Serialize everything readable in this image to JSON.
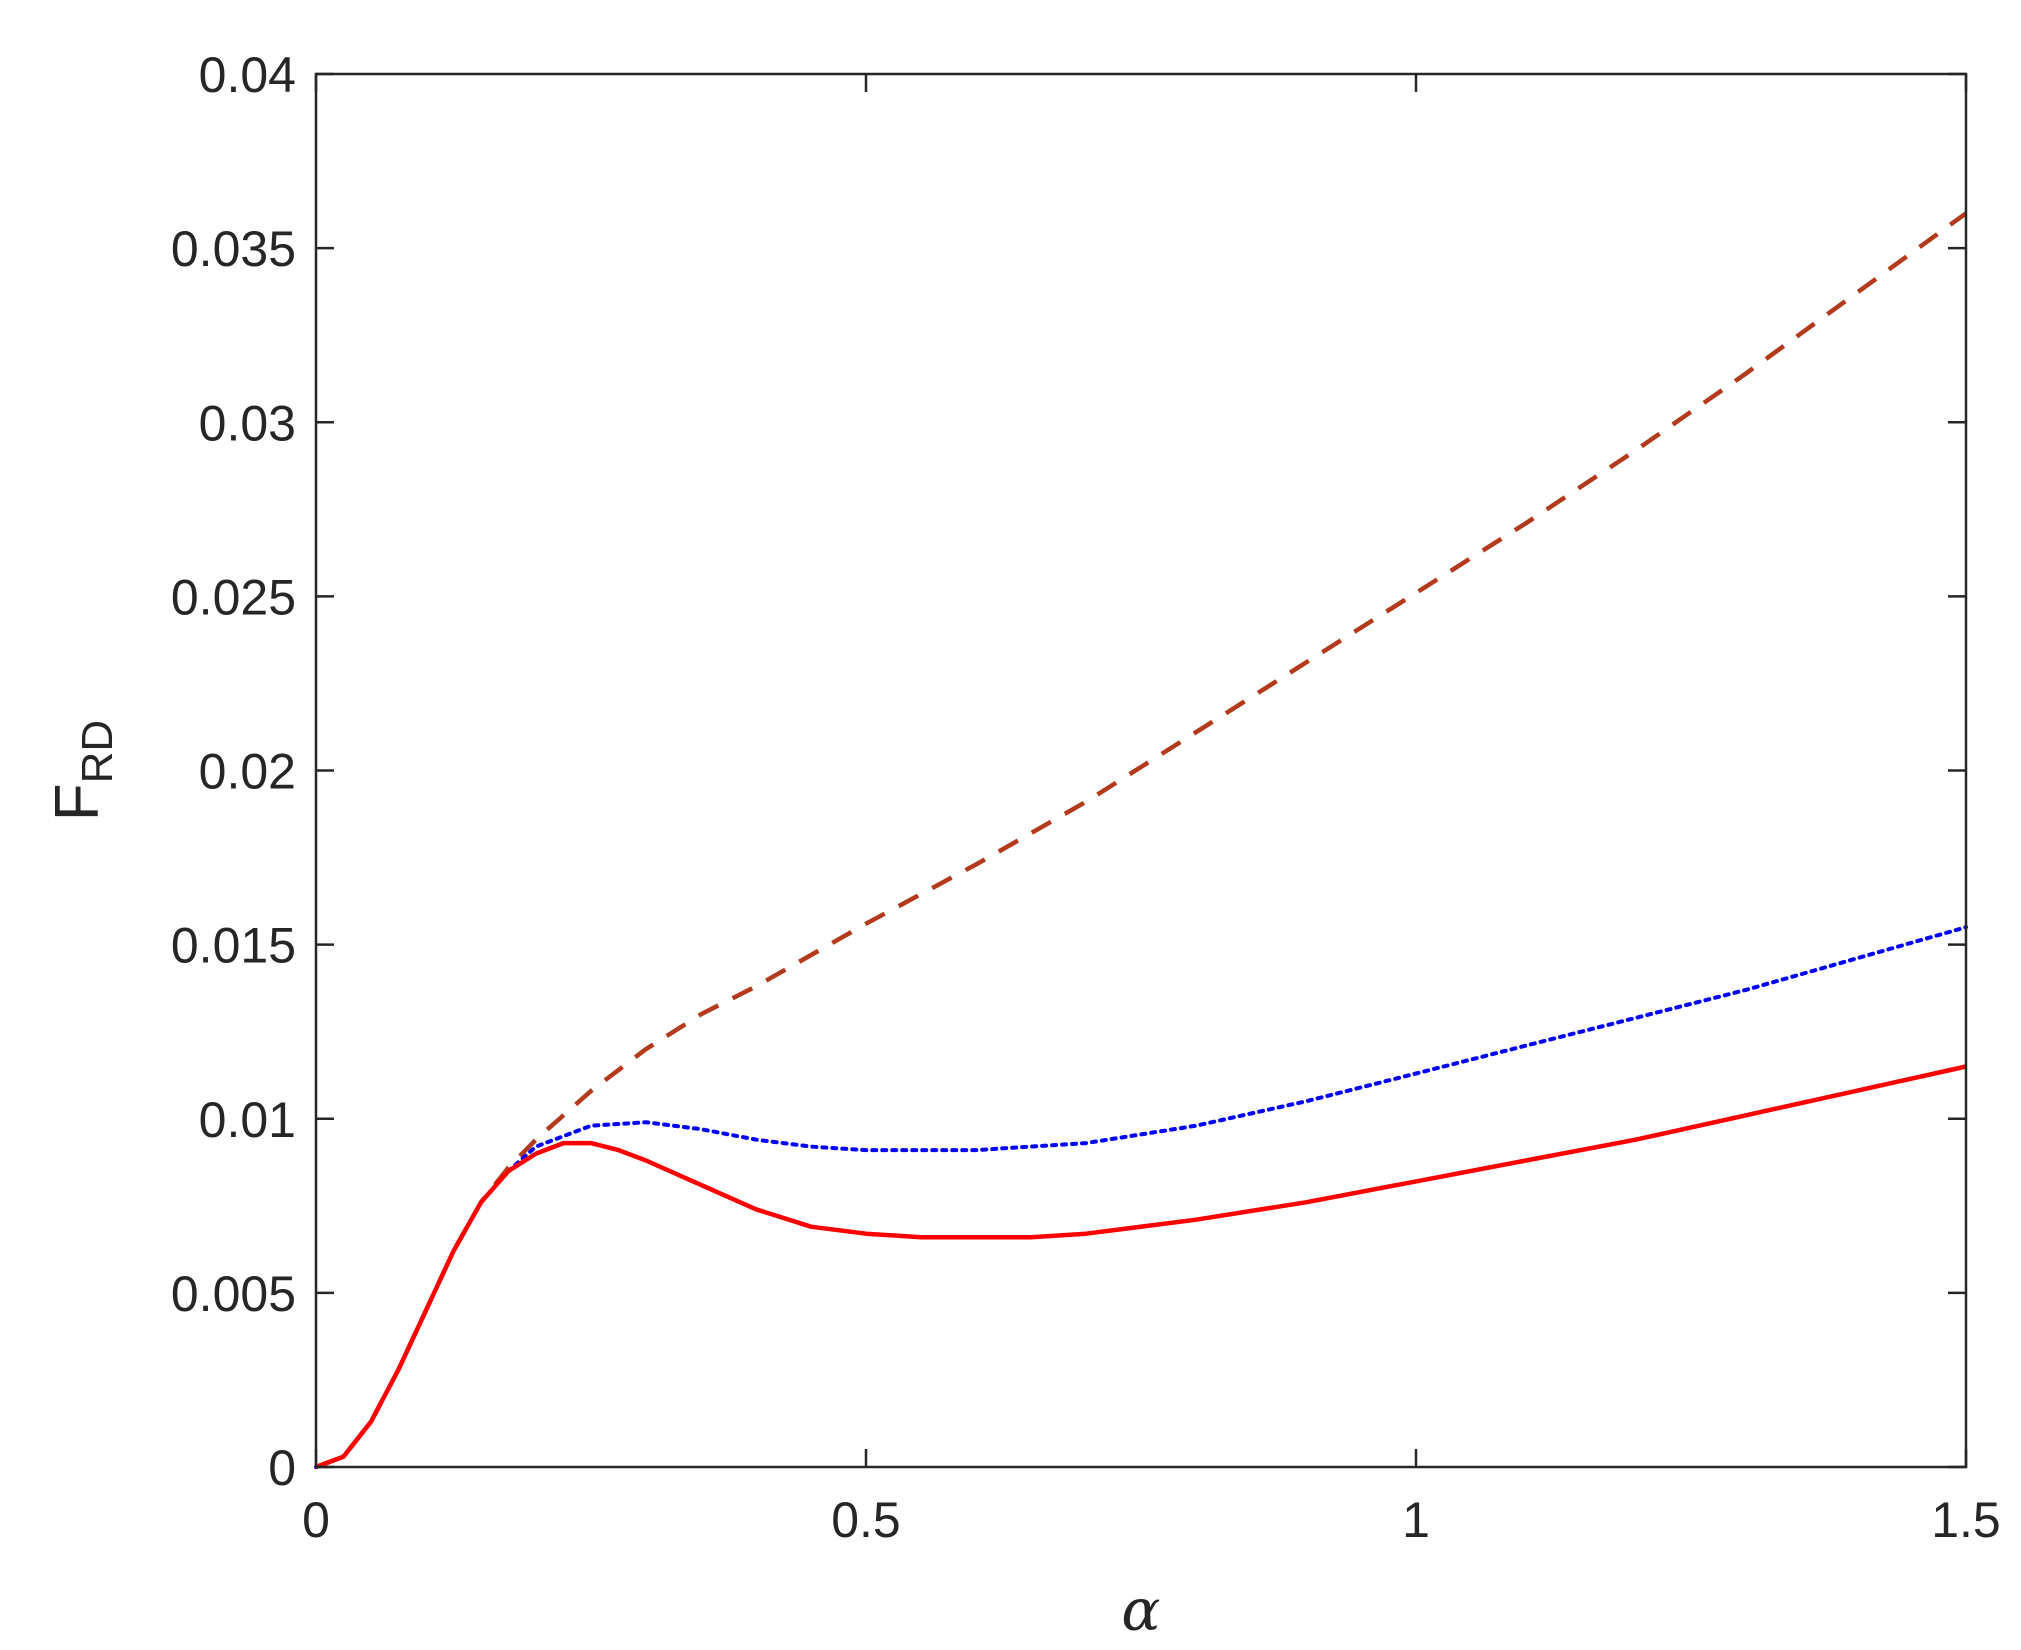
{
  "chart_data": {
    "type": "line",
    "title": "",
    "xlabel": "α",
    "ylabel_main": "F",
    "ylabel_sub": "RD",
    "xlim": [
      0,
      1.5
    ],
    "ylim": [
      0,
      0.04
    ],
    "xticks": [
      0,
      0.5,
      1,
      1.5
    ],
    "xtick_labels": [
      "0",
      "0.5",
      "1",
      "1.5"
    ],
    "yticks": [
      0,
      0.005,
      0.01,
      0.015,
      0.02,
      0.025,
      0.03,
      0.035,
      0.04
    ],
    "ytick_labels": [
      "0",
      "0.005",
      "0.01",
      "0.015",
      "0.02",
      "0.025",
      "0.03",
      "0.035",
      "0.04"
    ],
    "grid": false,
    "series": [
      {
        "style": "dashed",
        "color": "#b33a1a",
        "x": [
          0,
          0.025,
          0.05,
          0.075,
          0.1,
          0.125,
          0.15,
          0.175,
          0.2,
          0.25,
          0.3,
          0.35,
          0.4,
          0.5,
          0.6,
          0.7,
          0.8,
          0.9,
          1.0,
          1.1,
          1.2,
          1.3,
          1.4,
          1.5
        ],
        "y": [
          0,
          0.0003,
          0.0013,
          0.0028,
          0.0045,
          0.0062,
          0.0076,
          0.0086,
          0.0094,
          0.0108,
          0.012,
          0.013,
          0.0138,
          0.0156,
          0.0173,
          0.0191,
          0.0211,
          0.0231,
          0.0251,
          0.0271,
          0.0292,
          0.0314,
          0.0337,
          0.036
        ]
      },
      {
        "style": "dotted",
        "color": "#0000ff",
        "x": [
          0,
          0.025,
          0.05,
          0.075,
          0.1,
          0.125,
          0.15,
          0.175,
          0.2,
          0.25,
          0.3,
          0.35,
          0.4,
          0.45,
          0.5,
          0.55,
          0.6,
          0.65,
          0.7,
          0.8,
          0.9,
          1.0,
          1.1,
          1.2,
          1.3,
          1.4,
          1.5
        ],
        "y": [
          0,
          0.0003,
          0.0013,
          0.0028,
          0.0045,
          0.0062,
          0.0076,
          0.0085,
          0.0092,
          0.0098,
          0.0099,
          0.0097,
          0.0094,
          0.0092,
          0.0091,
          0.0091,
          0.0091,
          0.0092,
          0.0093,
          0.0098,
          0.0105,
          0.0113,
          0.0121,
          0.0129,
          0.0137,
          0.0146,
          0.0155
        ]
      },
      {
        "style": "solid",
        "color": "#ff0000",
        "x": [
          0,
          0.025,
          0.05,
          0.075,
          0.1,
          0.125,
          0.15,
          0.175,
          0.2,
          0.225,
          0.25,
          0.275,
          0.3,
          0.35,
          0.4,
          0.45,
          0.5,
          0.55,
          0.6,
          0.65,
          0.7,
          0.8,
          0.9,
          1.0,
          1.1,
          1.2,
          1.3,
          1.4,
          1.5
        ],
        "y": [
          0,
          0.0003,
          0.0013,
          0.0028,
          0.0045,
          0.0062,
          0.0076,
          0.0085,
          0.009,
          0.0093,
          0.0093,
          0.0091,
          0.0088,
          0.0081,
          0.0074,
          0.0069,
          0.0067,
          0.0066,
          0.0066,
          0.0066,
          0.0067,
          0.0071,
          0.0076,
          0.0082,
          0.0088,
          0.0094,
          0.0101,
          0.0108,
          0.0115
        ]
      }
    ]
  }
}
